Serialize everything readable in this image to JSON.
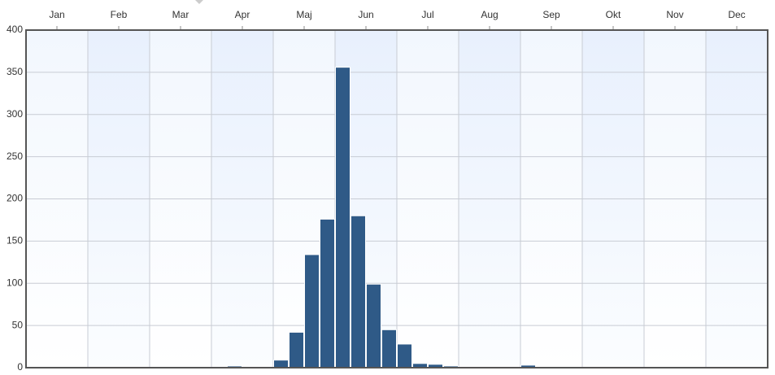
{
  "chart_data": {
    "type": "histogram",
    "bins": [
      0,
      0.25,
      0.5,
      0.75,
      1,
      1.25,
      1.5,
      1.75,
      2,
      2.25,
      2.5,
      2.75,
      3,
      3.25,
      3.5,
      3.75,
      4,
      4.25,
      4.5,
      4.75,
      5,
      5.25,
      5.5,
      5.75,
      6,
      6.25,
      6.5,
      6.75,
      7,
      7.25,
      7.5,
      7.75,
      8,
      8.25,
      8.5,
      8.75,
      9,
      9.25,
      9.5,
      9.75,
      10,
      10.25,
      10.5,
      10.75,
      11,
      11.25,
      11.5,
      11.75,
      12
    ],
    "values": [
      0,
      0,
      0,
      0,
      0,
      0,
      0,
      0,
      0,
      0,
      0,
      0,
      0,
      2,
      0,
      0,
      9,
      42,
      134,
      176,
      356,
      180,
      99,
      45,
      28,
      5,
      4,
      2,
      0,
      0,
      0,
      0,
      3,
      0,
      0,
      0,
      0,
      0,
      0,
      0,
      0,
      0,
      0,
      0,
      0,
      0,
      0,
      0
    ],
    "color": "#2f5a87",
    "xlim": [
      0,
      12
    ],
    "xticks": [
      {
        "value": 0.5,
        "label": "Jan"
      },
      {
        "value": 1.5,
        "label": "Feb"
      },
      {
        "value": 2.5,
        "label": "Mar"
      },
      {
        "value": 3.5,
        "label": "Apr"
      },
      {
        "value": 4.5,
        "label": "Maj"
      },
      {
        "value": 5.5,
        "label": "Jun"
      },
      {
        "value": 6.5,
        "label": "Jul"
      },
      {
        "value": 7.5,
        "label": "Aug"
      },
      {
        "value": 8.5,
        "label": "Sep"
      },
      {
        "value": 9.5,
        "label": "Okt"
      },
      {
        "value": 10.5,
        "label": "Nov"
      },
      {
        "value": 11.5,
        "label": "Dec"
      }
    ],
    "ylim": [
      0,
      400
    ],
    "yticks": [
      0,
      50,
      100,
      150,
      200,
      250,
      300,
      350,
      400
    ],
    "grid": true
  }
}
